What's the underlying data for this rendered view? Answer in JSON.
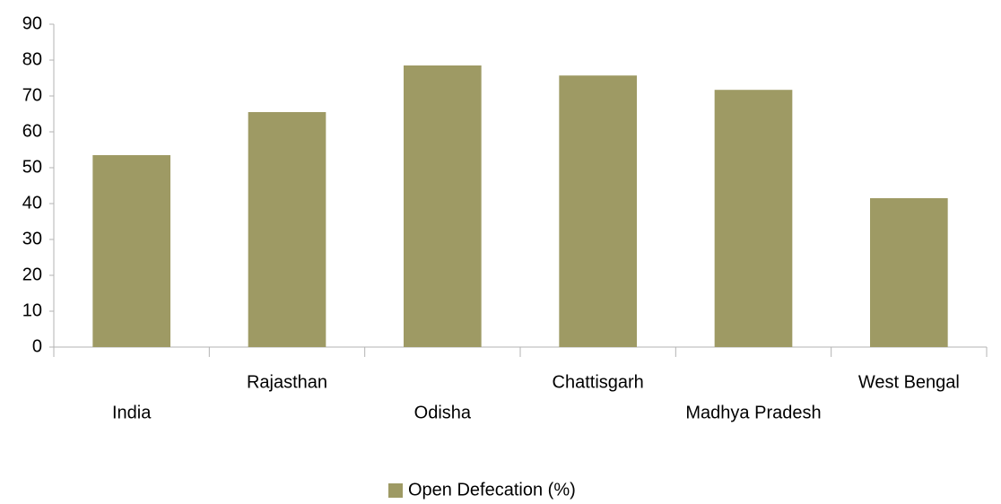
{
  "chart_data": {
    "type": "bar",
    "categories": [
      "India",
      "Rajasthan",
      "Odisha",
      "Chattisgarh",
      "Madhya Pradesh",
      "West Bengal"
    ],
    "series": [
      {
        "name": "Open Defecation (%)",
        "color": "#9e9a64",
        "values": [
          53.5,
          65.5,
          78.5,
          75.7,
          71.7,
          41.5
        ]
      }
    ],
    "ylim": [
      0,
      90
    ],
    "yticks": [
      0,
      10,
      20,
      30,
      40,
      50,
      60,
      70,
      80,
      90
    ],
    "legend": "bottom"
  }
}
